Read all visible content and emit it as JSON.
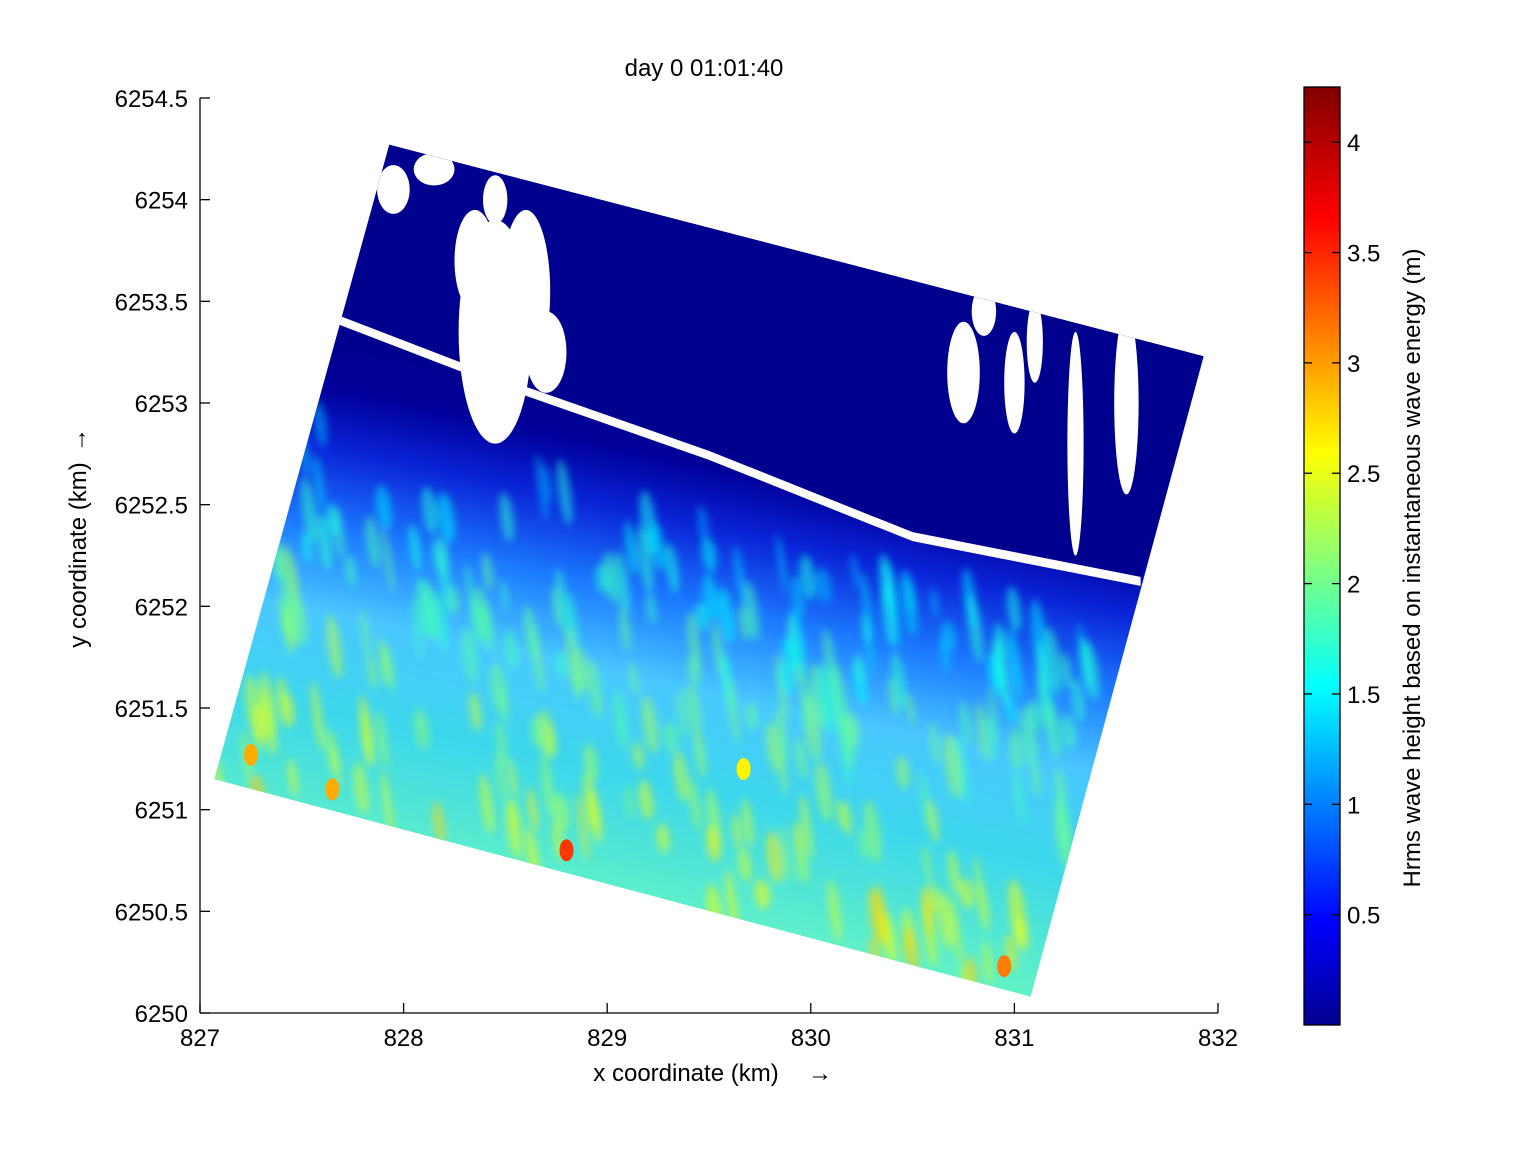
{
  "chart_data": {
    "type": "heatmap",
    "title": "day 0 01:01:40",
    "xlabel": "x coordinate (km)",
    "ylabel": "y coordinate (km)",
    "axis_arrow": "→",
    "xlim": [
      827,
      832
    ],
    "ylim": [
      6250,
      6254.5
    ],
    "xticks": [
      827,
      828,
      829,
      830,
      831,
      832
    ],
    "xtick_labels": [
      "827",
      "828",
      "829",
      "830",
      "831",
      "832"
    ],
    "yticks": [
      6250,
      6250.5,
      6251,
      6251.5,
      6252,
      6252.5,
      6253,
      6253.5,
      6254,
      6254.5
    ],
    "ytick_labels": [
      "6250",
      "6250.5",
      "6251",
      "6251.5",
      "6252",
      "6252.5",
      "6253",
      "6253.5",
      "6254",
      "6254.5"
    ],
    "grid": false,
    "colormap": "jet",
    "colorbar": {
      "label": "Hrms wave height based on instantaneous wave energy (m)",
      "range": [
        0,
        4.25
      ],
      "ticks": [
        0.5,
        1,
        1.5,
        2,
        2.5,
        3,
        3.5,
        4
      ],
      "tick_labels": [
        "0.5",
        "1",
        "1.5",
        "2",
        "2.5",
        "3",
        "3.5",
        "4"
      ],
      "placement": "right"
    },
    "domain_corners_km": [
      {
        "x": 827.07,
        "y": 6251.15
      },
      {
        "x": 831.08,
        "y": 6250.08
      },
      {
        "x": 831.93,
        "y": 6253.23
      },
      {
        "x": 827.93,
        "y": 6254.27
      }
    ],
    "shoreline_km": [
      {
        "x": 827.67,
        "y": 6253.42
      },
      {
        "x": 828.5,
        "y": 6253.1
      },
      {
        "x": 829.5,
        "y": 6252.75
      },
      {
        "x": 830.5,
        "y": 6252.35
      },
      {
        "x": 831.62,
        "y": 6252.13
      }
    ],
    "wave_height_profile": {
      "cross_shore_distance_km": [
        0.0,
        0.3,
        0.6,
        0.9,
        1.2,
        1.5,
        1.8,
        2.0,
        2.3
      ],
      "mean_hrms_m": [
        1.6,
        1.7,
        1.9,
        1.8,
        1.6,
        1.4,
        0.9,
        0.4,
        0.0
      ]
    },
    "peak_values": [
      {
        "x": 828.8,
        "y": 6250.8,
        "hrms": 3.5
      },
      {
        "x": 827.25,
        "y": 6251.27,
        "hrms": 3.0
      },
      {
        "x": 827.65,
        "y": 6251.1,
        "hrms": 3.0
      },
      {
        "x": 830.95,
        "y": 6250.23,
        "hrms": 3.2
      },
      {
        "x": 829.67,
        "y": 6251.2,
        "hrms": 2.7
      }
    ],
    "dry_cell_color": "#ffffff",
    "offshore_fill_color": "#00008f"
  }
}
